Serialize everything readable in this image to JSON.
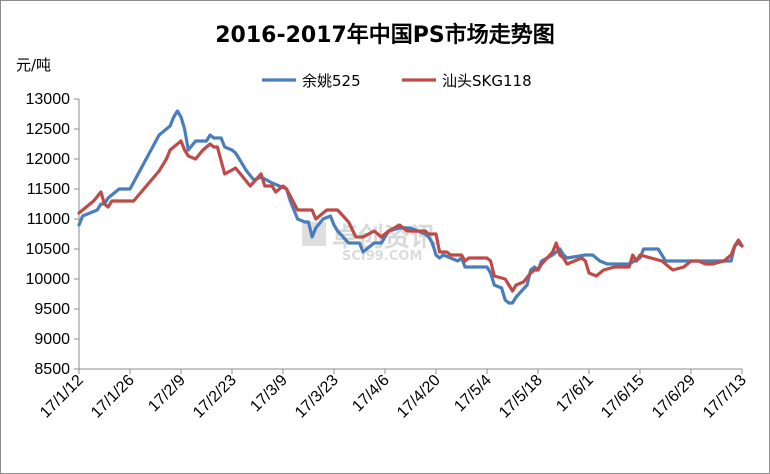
{
  "chart_data": {
    "type": "line",
    "title": "2016-2017年中国PS市场走势图",
    "ylabel": "元/吨",
    "ylim": [
      8500,
      13000
    ],
    "ytick_step": 500,
    "yticks": [
      "8500",
      "9000",
      "9500",
      "10000",
      "10500",
      "11000",
      "11500",
      "12000",
      "12500",
      "13000"
    ],
    "xrange": [
      "2017-01-12",
      "2017-07-13"
    ],
    "xtick_labels": [
      "17/1/12",
      "17/1/26",
      "17/2/9",
      "17/2/23",
      "17/3/9",
      "17/3/23",
      "17/4/6",
      "17/4/20",
      "17/5/4",
      "17/5/18",
      "17/6/1",
      "17/6/15",
      "17/6/29",
      "17/7/13"
    ],
    "xtick_dates": [
      "2017-01-12",
      "2017-01-26",
      "2017-02-09",
      "2017-02-23",
      "2017-03-09",
      "2017-03-23",
      "2017-04-06",
      "2017-04-20",
      "2017-05-04",
      "2017-05-18",
      "2017-06-01",
      "2017-06-15",
      "2017-06-29",
      "2017-07-13"
    ],
    "grid": false,
    "legend_position": "top",
    "watermark": "卓创资讯",
    "watermark_sub": "SCI99.COM",
    "series": [
      {
        "name": "余姚525",
        "color": "#4a7ebb",
        "points": [
          [
            "2017-01-12",
            10900
          ],
          [
            "2017-01-13",
            11050
          ],
          [
            "2017-01-17",
            11150
          ],
          [
            "2017-01-18",
            11250
          ],
          [
            "2017-01-19",
            11250
          ],
          [
            "2017-01-20",
            11350
          ],
          [
            "2017-01-23",
            11500
          ],
          [
            "2017-01-26",
            11500
          ],
          [
            "2017-02-03",
            12400
          ],
          [
            "2017-02-06",
            12550
          ],
          [
            "2017-02-07",
            12700
          ],
          [
            "2017-02-08",
            12800
          ],
          [
            "2017-02-09",
            12700
          ],
          [
            "2017-02-10",
            12500
          ],
          [
            "2017-02-11",
            12150
          ],
          [
            "2017-02-13",
            12300
          ],
          [
            "2017-02-15",
            12300
          ],
          [
            "2017-02-16",
            12300
          ],
          [
            "2017-02-17",
            12400
          ],
          [
            "2017-02-18",
            12350
          ],
          [
            "2017-02-20",
            12350
          ],
          [
            "2017-02-21",
            12200
          ],
          [
            "2017-02-23",
            12150
          ],
          [
            "2017-02-24",
            12100
          ],
          [
            "2017-02-27",
            11800
          ],
          [
            "2017-03-01",
            11650
          ],
          [
            "2017-03-03",
            11700
          ],
          [
            "2017-03-06",
            11600
          ],
          [
            "2017-03-08",
            11550
          ],
          [
            "2017-03-10",
            11500
          ],
          [
            "2017-03-11",
            11300
          ],
          [
            "2017-03-13",
            11000
          ],
          [
            "2017-03-15",
            10950
          ],
          [
            "2017-03-16",
            10950
          ],
          [
            "2017-03-17",
            10700
          ],
          [
            "2017-03-18",
            10850
          ],
          [
            "2017-03-20",
            11000
          ],
          [
            "2017-03-22",
            11050
          ],
          [
            "2017-03-23",
            10900
          ],
          [
            "2017-03-24",
            10800
          ],
          [
            "2017-03-27",
            10600
          ],
          [
            "2017-03-30",
            10600
          ],
          [
            "2017-03-31",
            10450
          ],
          [
            "2017-04-03",
            10600
          ],
          [
            "2017-04-05",
            10600
          ],
          [
            "2017-04-07",
            10800
          ],
          [
            "2017-04-10",
            10850
          ],
          [
            "2017-04-13",
            10850
          ],
          [
            "2017-04-17",
            10750
          ],
          [
            "2017-04-18",
            10700
          ],
          [
            "2017-04-19",
            10600
          ],
          [
            "2017-04-20",
            10400
          ],
          [
            "2017-04-21",
            10350
          ],
          [
            "2017-04-22",
            10400
          ],
          [
            "2017-04-24",
            10350
          ],
          [
            "2017-04-26",
            10300
          ],
          [
            "2017-04-27",
            10350
          ],
          [
            "2017-04-28",
            10200
          ],
          [
            "2017-05-04",
            10200
          ],
          [
            "2017-05-05",
            10100
          ],
          [
            "2017-05-06",
            9900
          ],
          [
            "2017-05-08",
            9850
          ],
          [
            "2017-05-09",
            9650
          ],
          [
            "2017-05-10",
            9600
          ],
          [
            "2017-05-11",
            9600
          ],
          [
            "2017-05-12",
            9700
          ],
          [
            "2017-05-15",
            9900
          ],
          [
            "2017-05-16",
            10150
          ],
          [
            "2017-05-17",
            10200
          ],
          [
            "2017-05-18",
            10150
          ],
          [
            "2017-05-19",
            10300
          ],
          [
            "2017-05-22",
            10400
          ],
          [
            "2017-05-23",
            10450
          ],
          [
            "2017-05-24",
            10500
          ],
          [
            "2017-05-25",
            10400
          ],
          [
            "2017-05-26",
            10350
          ],
          [
            "2017-05-31",
            10400
          ],
          [
            "2017-06-02",
            10400
          ],
          [
            "2017-06-04",
            10300
          ],
          [
            "2017-06-06",
            10250
          ],
          [
            "2017-06-09",
            10250
          ],
          [
            "2017-06-12",
            10250
          ],
          [
            "2017-06-15",
            10350
          ],
          [
            "2017-06-16",
            10500
          ],
          [
            "2017-06-20",
            10500
          ],
          [
            "2017-06-21",
            10400
          ],
          [
            "2017-06-22",
            10300
          ],
          [
            "2017-06-26",
            10300
          ],
          [
            "2017-06-30",
            10300
          ],
          [
            "2017-07-03",
            10300
          ],
          [
            "2017-07-06",
            10300
          ],
          [
            "2017-07-08",
            10300
          ],
          [
            "2017-07-10",
            10300
          ],
          [
            "2017-07-11",
            10550
          ],
          [
            "2017-07-12",
            10600
          ],
          [
            "2017-07-13",
            10550
          ]
        ]
      },
      {
        "name": "汕头SKG118",
        "color": "#be4b48",
        "points": [
          [
            "2017-01-12",
            11100
          ],
          [
            "2017-01-16",
            11300
          ],
          [
            "2017-01-18",
            11450
          ],
          [
            "2017-01-19",
            11250
          ],
          [
            "2017-01-20",
            11200
          ],
          [
            "2017-01-21",
            11300
          ],
          [
            "2017-01-26",
            11300
          ],
          [
            "2017-01-27",
            11300
          ],
          [
            "2017-02-03",
            11800
          ],
          [
            "2017-02-05",
            12000
          ],
          [
            "2017-02-06",
            12150
          ],
          [
            "2017-02-08",
            12250
          ],
          [
            "2017-02-09",
            12300
          ],
          [
            "2017-02-10",
            12150
          ],
          [
            "2017-02-11",
            12050
          ],
          [
            "2017-02-13",
            12000
          ],
          [
            "2017-02-15",
            12150
          ],
          [
            "2017-02-17",
            12250
          ],
          [
            "2017-02-18",
            12200
          ],
          [
            "2017-02-19",
            12200
          ],
          [
            "2017-02-21",
            11750
          ],
          [
            "2017-02-24",
            11850
          ],
          [
            "2017-02-28",
            11550
          ],
          [
            "2017-03-03",
            11750
          ],
          [
            "2017-03-04",
            11550
          ],
          [
            "2017-03-06",
            11550
          ],
          [
            "2017-03-07",
            11450
          ],
          [
            "2017-03-09",
            11550
          ],
          [
            "2017-03-10",
            11500
          ],
          [
            "2017-03-13",
            11150
          ],
          [
            "2017-03-17",
            11150
          ],
          [
            "2017-03-18",
            11000
          ],
          [
            "2017-03-21",
            11150
          ],
          [
            "2017-03-24",
            11150
          ],
          [
            "2017-03-27",
            10950
          ],
          [
            "2017-03-29",
            10700
          ],
          [
            "2017-03-31",
            10700
          ],
          [
            "2017-04-03",
            10800
          ],
          [
            "2017-04-05",
            10700
          ],
          [
            "2017-04-07",
            10800
          ],
          [
            "2017-04-10",
            10900
          ],
          [
            "2017-04-12",
            10800
          ],
          [
            "2017-04-14",
            10800
          ],
          [
            "2017-04-17",
            10800
          ],
          [
            "2017-04-18",
            10750
          ],
          [
            "2017-04-20",
            10750
          ],
          [
            "2017-04-21",
            10450
          ],
          [
            "2017-04-23",
            10450
          ],
          [
            "2017-04-24",
            10400
          ],
          [
            "2017-04-27",
            10400
          ],
          [
            "2017-04-28",
            10300
          ],
          [
            "2017-04-29",
            10350
          ],
          [
            "2017-05-04",
            10350
          ],
          [
            "2017-05-05",
            10300
          ],
          [
            "2017-05-06",
            10050
          ],
          [
            "2017-05-09",
            10000
          ],
          [
            "2017-05-11",
            9800
          ],
          [
            "2017-05-12",
            9900
          ],
          [
            "2017-05-14",
            9950
          ],
          [
            "2017-05-16",
            10100
          ],
          [
            "2017-05-17",
            10150
          ],
          [
            "2017-05-18",
            10150
          ],
          [
            "2017-05-19",
            10250
          ],
          [
            "2017-05-22",
            10450
          ],
          [
            "2017-05-23",
            10600
          ],
          [
            "2017-05-24",
            10400
          ],
          [
            "2017-05-25",
            10350
          ],
          [
            "2017-05-26",
            10250
          ],
          [
            "2017-05-30",
            10350
          ],
          [
            "2017-05-31",
            10300
          ],
          [
            "2017-06-01",
            10100
          ],
          [
            "2017-06-03",
            10050
          ],
          [
            "2017-06-05",
            10150
          ],
          [
            "2017-06-08",
            10200
          ],
          [
            "2017-06-12",
            10200
          ],
          [
            "2017-06-13",
            10400
          ],
          [
            "2017-06-14",
            10300
          ],
          [
            "2017-06-15",
            10400
          ],
          [
            "2017-06-21",
            10300
          ],
          [
            "2017-06-24",
            10150
          ],
          [
            "2017-06-27",
            10200
          ],
          [
            "2017-06-29",
            10300
          ],
          [
            "2017-07-01",
            10300
          ],
          [
            "2017-07-03",
            10250
          ],
          [
            "2017-07-05",
            10250
          ],
          [
            "2017-07-08",
            10300
          ],
          [
            "2017-07-10",
            10400
          ],
          [
            "2017-07-11",
            10550
          ],
          [
            "2017-07-12",
            10650
          ],
          [
            "2017-07-13",
            10550
          ]
        ]
      }
    ]
  }
}
